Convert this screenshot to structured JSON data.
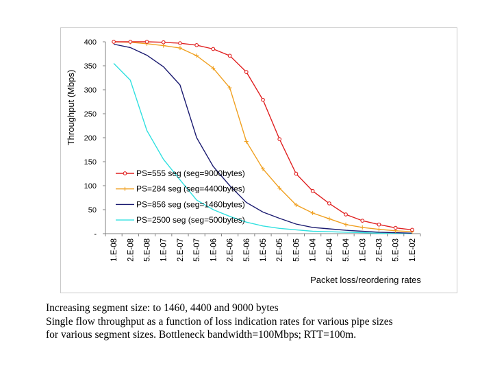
{
  "chart_data": {
    "type": "line",
    "title": "",
    "xlabel": "Packet loss/reordering rates",
    "ylabel": "Throughput (Mbps)",
    "ylim": [
      0,
      400
    ],
    "yticks": [
      {
        "value": 0,
        "label": "-"
      },
      {
        "value": 50,
        "label": "50"
      },
      {
        "value": 100,
        "label": "100"
      },
      {
        "value": 150,
        "label": "150"
      },
      {
        "value": 200,
        "label": "200"
      },
      {
        "value": 250,
        "label": "250"
      },
      {
        "value": 300,
        "label": "300"
      },
      {
        "value": 350,
        "label": "350"
      },
      {
        "value": 400,
        "label": "400"
      }
    ],
    "categories": [
      "1.E-08",
      "2.E-08",
      "5.E-08",
      "1.E-07",
      "2.E-07",
      "5.E-07",
      "1.E-06",
      "2.E-06",
      "5.E-06",
      "1.E-05",
      "2.E-05",
      "5.E-05",
      "1.E-04",
      "2.E-04",
      "5.E-04",
      "1.E-03",
      "2.E-03",
      "5.E-03",
      "1.E-02"
    ],
    "grid": false,
    "legend_position": "lower-left inside plot",
    "series": [
      {
        "name": "PS=555 seg (seg=9000bytes)",
        "color": "#e02020",
        "marker": "circle",
        "values": [
          400,
          400,
          400,
          399,
          397,
          393,
          385,
          371,
          337,
          279,
          197,
          125,
          89,
          63,
          40,
          27,
          19,
          12,
          8
        ]
      },
      {
        "name": "PS=284 seg (seg=4400bytes)",
        "color": "#f0a020",
        "marker": "plus",
        "values": [
          400,
          399,
          396,
          392,
          387,
          371,
          345,
          304,
          192,
          135,
          95,
          60,
          43,
          31,
          19,
          13,
          9,
          6,
          4
        ]
      },
      {
        "name": "PS=856 seg (seg=1460bytes)",
        "color": "#1a1a70",
        "marker": "none",
        "values": [
          395,
          388,
          372,
          348,
          310,
          200,
          140,
          100,
          65,
          45,
          32,
          20,
          13,
          10,
          7,
          5,
          3,
          2,
          1
        ]
      },
      {
        "name": "PS=2500 seg (seg=500bytes)",
        "color": "#30e0e0",
        "marker": "none",
        "values": [
          355,
          320,
          215,
          155,
          112,
          70,
          50,
          36,
          24,
          16,
          11,
          8,
          5,
          4,
          3,
          2,
          1,
          1,
          0
        ]
      }
    ]
  },
  "caption": {
    "line1": "Increasing segment size: to 1460, 4400 and 9000 bytes",
    "line2": "Single flow throughput as a function of loss indication rates for various pipe sizes",
    "line3": "for various segment sizes. Bottleneck bandwidth=100Mbps; RTT=100m."
  }
}
